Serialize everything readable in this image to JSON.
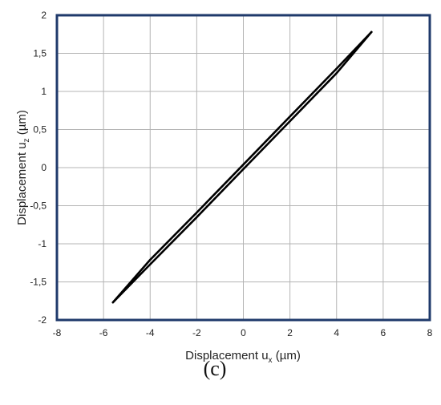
{
  "chart_data": {
    "type": "line",
    "title": "",
    "xlabel": {
      "prefix": "Displacement u",
      "sub": "x",
      "suffix": " (µm)"
    },
    "ylabel": {
      "prefix": "Displacement u",
      "sub": "z",
      "suffix": " (µm)"
    },
    "xlim": [
      -8,
      8
    ],
    "ylim": [
      -2,
      2
    ],
    "x_ticks": [
      -8,
      -6,
      -4,
      -2,
      0,
      2,
      4,
      6,
      8
    ],
    "x_tick_labels": [
      "-8",
      "-6",
      "-4",
      "-2",
      "0",
      "2",
      "4",
      "6",
      "8"
    ],
    "y_ticks": [
      -2,
      -1.5,
      -1,
      -0.5,
      0,
      0.5,
      1,
      1.5,
      2
    ],
    "y_tick_labels": [
      "-2",
      "-1,5",
      "-1",
      "-0,5",
      "0",
      "0,5",
      "1",
      "1,5",
      "2"
    ],
    "grid": true,
    "legend": "none",
    "series": [
      {
        "values_x": [
          -5.6,
          -4.0,
          -2.0,
          0.0,
          2.0,
          4.0,
          5.5
        ],
        "values_y": [
          -1.77,
          -1.27,
          -0.65,
          -0.02,
          0.61,
          1.24,
          1.78
        ],
        "color": "#000000"
      },
      {
        "values_x": [
          5.5,
          4.0,
          2.0,
          0.0,
          -2.0,
          -4.0,
          -5.6
        ],
        "values_y": [
          1.78,
          1.3,
          0.67,
          0.04,
          -0.59,
          -1.21,
          -1.77
        ],
        "color": "#000000"
      }
    ],
    "frame_color": "#1f3a6b",
    "grid_color": "#b4b4b4"
  },
  "panel_label": "(c)"
}
